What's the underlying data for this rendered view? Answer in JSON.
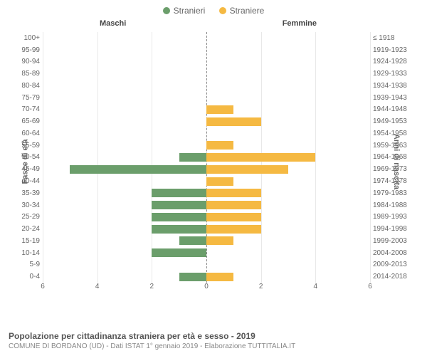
{
  "legend": {
    "male_label": "Stranieri",
    "female_label": "Straniere",
    "male_color": "#6b9e6b",
    "female_color": "#f5b942"
  },
  "columns": {
    "left": "Maschi",
    "right": "Femmine"
  },
  "axis_labels": {
    "left": "Fasce di età",
    "right": "Anni di nascita"
  },
  "chart": {
    "type": "population-pyramid",
    "xmax": 6,
    "x_ticks_left": [
      6,
      4,
      2,
      0
    ],
    "x_ticks_right": [
      0,
      2,
      4,
      6
    ],
    "background_color": "#ffffff",
    "grid_color": "#e8e8e8",
    "rows": [
      {
        "age": "100+",
        "birth": "≤ 1918",
        "m": 0,
        "f": 0
      },
      {
        "age": "95-99",
        "birth": "1919-1923",
        "m": 0,
        "f": 0
      },
      {
        "age": "90-94",
        "birth": "1924-1928",
        "m": 0,
        "f": 0
      },
      {
        "age": "85-89",
        "birth": "1929-1933",
        "m": 0,
        "f": 0
      },
      {
        "age": "80-84",
        "birth": "1934-1938",
        "m": 0,
        "f": 0
      },
      {
        "age": "75-79",
        "birth": "1939-1943",
        "m": 0,
        "f": 0
      },
      {
        "age": "70-74",
        "birth": "1944-1948",
        "m": 0,
        "f": 1
      },
      {
        "age": "65-69",
        "birth": "1949-1953",
        "m": 0,
        "f": 2
      },
      {
        "age": "60-64",
        "birth": "1954-1958",
        "m": 0,
        "f": 0
      },
      {
        "age": "55-59",
        "birth": "1959-1963",
        "m": 0,
        "f": 1
      },
      {
        "age": "50-54",
        "birth": "1964-1968",
        "m": 1,
        "f": 4
      },
      {
        "age": "45-49",
        "birth": "1969-1973",
        "m": 5,
        "f": 3
      },
      {
        "age": "40-44",
        "birth": "1974-1978",
        "m": 0,
        "f": 1
      },
      {
        "age": "35-39",
        "birth": "1979-1983",
        "m": 2,
        "f": 2
      },
      {
        "age": "30-34",
        "birth": "1984-1988",
        "m": 2,
        "f": 2
      },
      {
        "age": "25-29",
        "birth": "1989-1993",
        "m": 2,
        "f": 2
      },
      {
        "age": "20-24",
        "birth": "1994-1998",
        "m": 2,
        "f": 2
      },
      {
        "age": "15-19",
        "birth": "1999-2003",
        "m": 1,
        "f": 1
      },
      {
        "age": "10-14",
        "birth": "2004-2008",
        "m": 2,
        "f": 0
      },
      {
        "age": "5-9",
        "birth": "2009-2013",
        "m": 0,
        "f": 0
      },
      {
        "age": "0-4",
        "birth": "2014-2018",
        "m": 1,
        "f": 1
      }
    ]
  },
  "footer": {
    "title": "Popolazione per cittadinanza straniera per età e sesso - 2019",
    "subtitle": "COMUNE DI BORDANO (UD) - Dati ISTAT 1° gennaio 2019 - Elaborazione TUTTITALIA.IT"
  }
}
